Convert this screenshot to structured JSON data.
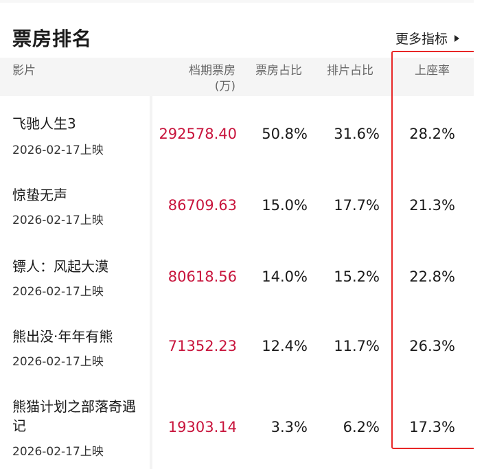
{
  "header": {
    "title": "票房排名",
    "more_label": "更多指标"
  },
  "table": {
    "columns": {
      "film": "影片",
      "box_line1": "档期票房",
      "box_line2": "(万)",
      "box_share": "票房占比",
      "screen_share": "排片占比",
      "seat_rate": "上座率"
    },
    "rows": [
      {
        "name": "飞驰人生3",
        "date": "2026-02-17上映",
        "box": "292578.40",
        "box_share": "50.8%",
        "screen_share": "31.6%",
        "seat_rate": "28.2%"
      },
      {
        "name": "惊蛰无声",
        "date": "2026-02-17上映",
        "box": "86709.63",
        "box_share": "15.0%",
        "screen_share": "17.7%",
        "seat_rate": "21.3%"
      },
      {
        "name": "镖人：风起大漠",
        "date": "2026-02-17上映",
        "box": "80618.56",
        "box_share": "14.0%",
        "screen_share": "15.2%",
        "seat_rate": "22.8%"
      },
      {
        "name": "熊出没·年年有熊",
        "date": "2026-02-17上映",
        "box": "71352.23",
        "box_share": "12.4%",
        "screen_share": "11.7%",
        "seat_rate": "26.3%"
      },
      {
        "name": "熊猫计划之部落奇遇记",
        "date": "2026-02-17上映",
        "box": "19303.14",
        "box_share": "3.3%",
        "screen_share": "6.2%",
        "seat_rate": "17.3%"
      }
    ]
  },
  "colors": {
    "accent_red": "#c8143c",
    "highlight_border": "#e82626"
  },
  "icons": {
    "more": "triangle-right-icon"
  }
}
